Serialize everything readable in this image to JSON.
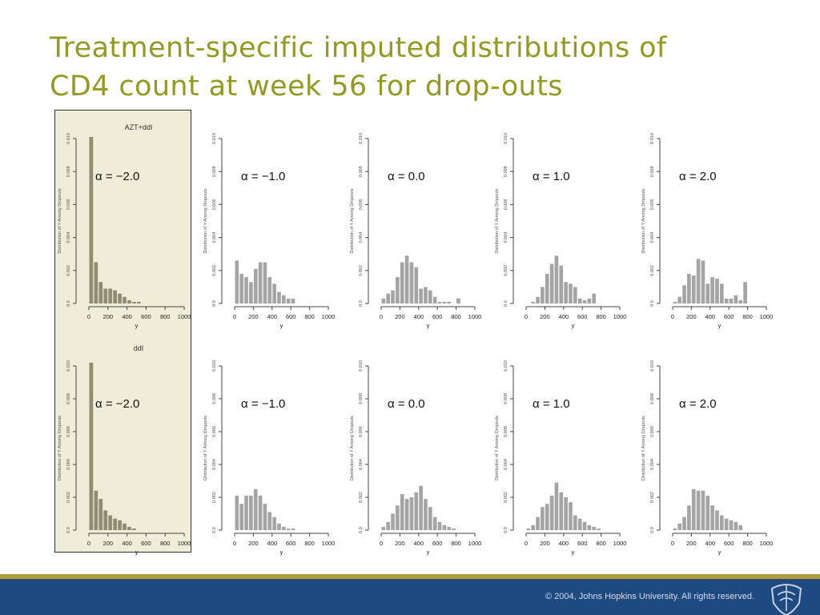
{
  "slide": {
    "title_line1": "Treatment-specific imputed distributions of",
    "title_line2": "CD4 count at week 56 for drop-outs",
    "copyright": "© 2004, Johns Hopkins University. All rights reserved."
  },
  "colors": {
    "title": "#939a1f",
    "footer": "#1d4a80",
    "rule": "#b59b3a",
    "highlight_panel": "#eeeed8",
    "bar_highlight": "#8e8c72",
    "bar_default": "#a4a4a4"
  },
  "icons": {
    "footer_logo": "jhu-shield-icon"
  },
  "chart_data": [
    {
      "type": "bar",
      "row_title": "AZT+ddI",
      "annotation": "α = −2.0",
      "highlighted": true,
      "xlabel": "y",
      "ylabel": "Distribution of Y Among Dropouts",
      "xticks": [
        "0",
        "200",
        "400",
        "600",
        "800",
        "1000"
      ],
      "xlim": [
        0,
        1000
      ],
      "yticks": [
        "0.0",
        "0.002",
        "0.004",
        "0.006",
        "0.008",
        "0.010"
      ],
      "ylim": [
        0,
        0.01
      ],
      "bin_width": 50,
      "values": [
        0.0101,
        0.0025,
        0.0013,
        0.0009,
        0.0009,
        0.0008,
        0.0006,
        0.0004,
        0.0002,
        0.0001,
        0.0001
      ]
    },
    {
      "type": "bar",
      "annotation": "α = −1.0",
      "highlighted": false,
      "xlabel": "y",
      "ylabel": "Distribution of Y Among Dropouts",
      "xticks": [
        "0",
        "200",
        "400",
        "600",
        "800",
        "1000"
      ],
      "xlim": [
        0,
        1000
      ],
      "yticks": [
        "0.0",
        "0.002",
        "0.004",
        "0.006",
        "0.008",
        "0.010"
      ],
      "ylim": [
        0,
        0.01
      ],
      "bin_width": 50,
      "values": [
        0.0026,
        0.0018,
        0.0016,
        0.0013,
        0.0021,
        0.0025,
        0.0025,
        0.0016,
        0.0012,
        0.0007,
        0.0005,
        0.0003,
        0.0003
      ]
    },
    {
      "type": "bar",
      "annotation": "α = 0.0",
      "highlighted": false,
      "xlabel": "y",
      "ylabel": "Distribution of Y Among Dropouts",
      "xticks": [
        "0",
        "200",
        "400",
        "600",
        "800",
        "1000"
      ],
      "xlim": [
        0,
        1000
      ],
      "yticks": [
        "0.0",
        "0.002",
        "0.004",
        "0.006",
        "0.008",
        "0.010"
      ],
      "ylim": [
        0,
        0.01
      ],
      "bin_width": 50,
      "values": [
        0.0003,
        0.0006,
        0.0008,
        0.0016,
        0.0025,
        0.0029,
        0.0025,
        0.0022,
        0.0009,
        0.001,
        0.0008,
        0.0004,
        0.0001,
        0.0001,
        0.0001,
        0,
        0.0003
      ]
    },
    {
      "type": "bar",
      "annotation": "α = 1.0",
      "highlighted": false,
      "xlabel": "y",
      "ylabel": "Distribution of Y Among Dropouts",
      "xticks": [
        "0",
        "200",
        "400",
        "600",
        "800",
        "1000"
      ],
      "xlim": [
        0,
        1000
      ],
      "yticks": [
        "0.0",
        "0.002",
        "0.004",
        "0.006",
        "0.008",
        "0.010"
      ],
      "ylim": [
        0,
        0.01
      ],
      "bin_width": 50,
      "values": [
        0,
        0.0001,
        0.0004,
        0.001,
        0.0018,
        0.0024,
        0.0029,
        0.0023,
        0.0013,
        0.0012,
        0.001,
        0.0003,
        0.0002,
        0.0003,
        0.0006
      ]
    },
    {
      "type": "bar",
      "annotation": "α = 2.0",
      "highlighted": false,
      "xlabel": "y",
      "ylabel": "Distribution of Y Among Dropouts",
      "xticks": [
        "0",
        "200",
        "400",
        "600",
        "800",
        "1000"
      ],
      "xlim": [
        0,
        1000
      ],
      "yticks": [
        "0.0",
        "0.002",
        "0.004",
        "0.006",
        "0.008",
        "0.010"
      ],
      "ylim": [
        0,
        0.01
      ],
      "bin_width": 50,
      "values": [
        0.0001,
        0.0004,
        0.0011,
        0.0018,
        0.0017,
        0.0027,
        0.0026,
        0.0012,
        0.0016,
        0.0015,
        0.0012,
        0.0003,
        0.0003,
        0.0005,
        0.0002,
        0.0013
      ]
    },
    {
      "type": "bar",
      "row_title": "ddI",
      "annotation": "α = −2.0",
      "highlighted": true,
      "xlabel": "y",
      "ylabel": "Distribution of Y Among Dropouts",
      "xticks": [
        "0",
        "200",
        "400",
        "600",
        "800",
        "1000"
      ],
      "xlim": [
        0,
        1000
      ],
      "yticks": [
        "0.0",
        "0.002",
        "0.004",
        "0.006",
        "0.008",
        "0.010"
      ],
      "ylim": [
        0,
        0.01
      ],
      "bin_width": 50,
      "values": [
        0.0102,
        0.0024,
        0.0019,
        0.0012,
        0.0009,
        0.0007,
        0.0006,
        0.0004,
        0.0002,
        0.0001
      ]
    },
    {
      "type": "bar",
      "annotation": "α = −1.0",
      "highlighted": false,
      "xlabel": "y",
      "ylabel": "Distribution of Y Among Dropouts",
      "xticks": [
        "0",
        "200",
        "400",
        "600",
        "800",
        "1000"
      ],
      "xlim": [
        0,
        1000
      ],
      "yticks": [
        "0.0",
        "0.002",
        "0.004",
        "0.006",
        "0.008",
        "0.010"
      ],
      "ylim": [
        0,
        0.01
      ],
      "bin_width": 50,
      "values": [
        0.0021,
        0.0016,
        0.0021,
        0.0021,
        0.0025,
        0.0021,
        0.0016,
        0.0011,
        0.0008,
        0.0004,
        0.0002,
        0.0001,
        0.0001
      ]
    },
    {
      "type": "bar",
      "annotation": "α = 0.0",
      "highlighted": false,
      "xlabel": "y",
      "ylabel": "Distribution of Y Among Dropouts",
      "xticks": [
        "0",
        "200",
        "400",
        "600",
        "800",
        "1000"
      ],
      "xlim": [
        0,
        1000
      ],
      "yticks": [
        "0.0",
        "0.002",
        "0.004",
        "0.006",
        "0.008",
        "0.010"
      ],
      "ylim": [
        0,
        0.01
      ],
      "bin_width": 50,
      "values": [
        0.0002,
        0.0005,
        0.001,
        0.0015,
        0.0022,
        0.0019,
        0.002,
        0.0023,
        0.0027,
        0.0019,
        0.0014,
        0.0008,
        0.0005,
        0.0003,
        0.0002,
        0.0001
      ]
    },
    {
      "type": "bar",
      "annotation": "α = 1.0",
      "highlighted": false,
      "xlabel": "y",
      "ylabel": "Distribution of Y Among Dropouts",
      "xticks": [
        "0",
        "200",
        "400",
        "600",
        "800",
        "1000"
      ],
      "xlim": [
        0,
        1000
      ],
      "yticks": [
        "0.0",
        "0.002",
        "0.004",
        "0.006",
        "0.008",
        "0.010"
      ],
      "ylim": [
        0,
        0.01
      ],
      "bin_width": 50,
      "values": [
        0.0001,
        0.0003,
        0.0008,
        0.0014,
        0.0016,
        0.0021,
        0.0029,
        0.0023,
        0.002,
        0.0017,
        0.0009,
        0.0007,
        0.0005,
        0.0003,
        0.0002,
        0.0001
      ]
    },
    {
      "type": "bar",
      "annotation": "α = 2.0",
      "highlighted": false,
      "xlabel": "y",
      "ylabel": "Distribution of Y Among Dropouts",
      "xticks": [
        "0",
        "200",
        "400",
        "600",
        "800",
        "1000"
      ],
      "xlim": [
        0,
        1000
      ],
      "yticks": [
        "0.0",
        "0.002",
        "0.004",
        "0.006",
        "0.008",
        "0.010"
      ],
      "ylim": [
        0,
        0.01
      ],
      "bin_width": 50,
      "values": [
        0.0001,
        0.0004,
        0.0008,
        0.0015,
        0.0025,
        0.0024,
        0.0024,
        0.0021,
        0.0015,
        0.0012,
        0.0009,
        0.0007,
        0.0006,
        0.0005,
        0.0003
      ]
    }
  ]
}
